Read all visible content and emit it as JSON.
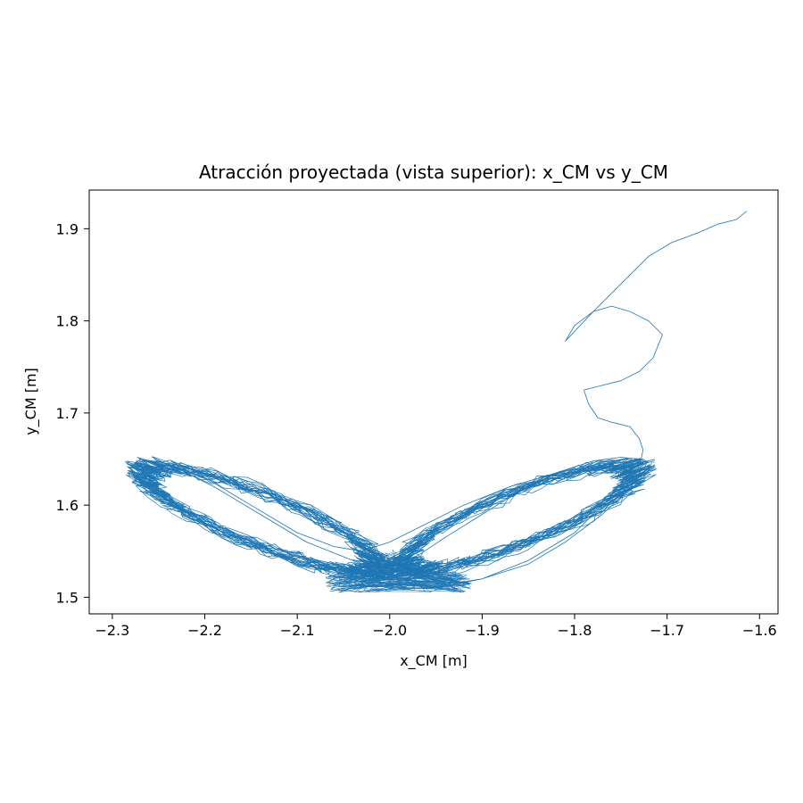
{
  "chart_data": {
    "type": "line",
    "title": "Atracción proyectada (vista superior): x_CM vs y_CM",
    "xlabel": "x_CM [m]",
    "ylabel": "y_CM [m]",
    "xlim": [
      -2.325,
      -1.58
    ],
    "ylim": [
      1.482,
      1.942
    ],
    "xticks": [
      -2.3,
      -2.2,
      -2.1,
      -2.0,
      -1.9,
      -1.8,
      -1.7,
      -1.6
    ],
    "xtick_labels": [
      "−2.3",
      "−2.2",
      "−2.1",
      "−2.0",
      "−1.9",
      "−1.8",
      "−1.7",
      "−1.6"
    ],
    "yticks": [
      1.5,
      1.6,
      1.7,
      1.8,
      1.9
    ],
    "ytick_labels": [
      "1.5",
      "1.6",
      "1.7",
      "1.8",
      "1.9"
    ],
    "grid": false,
    "legend": false,
    "line_color": "#1f77b4",
    "series": [
      {
        "x": [
          -1.614,
          -1.625,
          -1.645,
          -1.668,
          -1.695,
          -1.72,
          -1.75,
          -1.78,
          -1.81,
          -1.8,
          -1.78,
          -1.76,
          -1.74,
          -1.72,
          -1.705,
          -1.715,
          -1.73,
          -1.75,
          -1.77,
          -1.79,
          -1.785,
          -1.775,
          -1.76,
          -1.74,
          -1.73,
          -1.726,
          -1.728,
          -1.735,
          -1.75,
          -1.78,
          -1.82,
          -1.87,
          -1.92,
          -1.97,
          -2.0,
          -2.03,
          -2.06,
          -2.1,
          -2.15,
          -2.2,
          -2.24,
          -2.27,
          -2.28,
          -2.27,
          -2.24,
          -2.2,
          -2.15,
          -2.1,
          -2.05,
          -2.0,
          -1.95,
          -1.9,
          -1.85,
          -1.8,
          -1.77,
          -1.74,
          -1.725,
          -1.722,
          -1.73,
          -1.75,
          -1.78,
          -1.82,
          -1.86,
          -1.9,
          -1.94,
          -1.97,
          -2.0,
          -2.04,
          -2.09,
          -2.14,
          -2.19,
          -2.23,
          -2.26,
          -2.27,
          -2.26,
          -2.23,
          -2.19,
          -2.14,
          -2.09,
          -2.04,
          -2.0,
          -1.95,
          -1.9,
          -1.85,
          -1.81,
          -1.77,
          -1.74,
          -1.73
        ],
        "y": [
          1.919,
          1.91,
          1.905,
          1.895,
          1.885,
          1.87,
          1.84,
          1.81,
          1.778,
          1.795,
          1.81,
          1.816,
          1.81,
          1.8,
          1.785,
          1.76,
          1.745,
          1.735,
          1.73,
          1.725,
          1.71,
          1.695,
          1.69,
          1.685,
          1.672,
          1.66,
          1.65,
          1.648,
          1.646,
          1.642,
          1.635,
          1.62,
          1.6,
          1.575,
          1.56,
          1.55,
          1.555,
          1.57,
          1.6,
          1.63,
          1.645,
          1.65,
          1.64,
          1.625,
          1.605,
          1.585,
          1.56,
          1.54,
          1.522,
          1.51,
          1.51,
          1.52,
          1.54,
          1.57,
          1.6,
          1.625,
          1.64,
          1.646,
          1.65,
          1.652,
          1.648,
          1.635,
          1.615,
          1.59,
          1.565,
          1.545,
          1.535,
          1.54,
          1.56,
          1.59,
          1.62,
          1.64,
          1.648,
          1.643,
          1.625,
          1.6,
          1.575,
          1.553,
          1.535,
          1.522,
          1.514,
          1.512,
          1.52,
          1.536,
          1.56,
          1.59,
          1.618,
          1.635
        ]
      }
    ]
  }
}
